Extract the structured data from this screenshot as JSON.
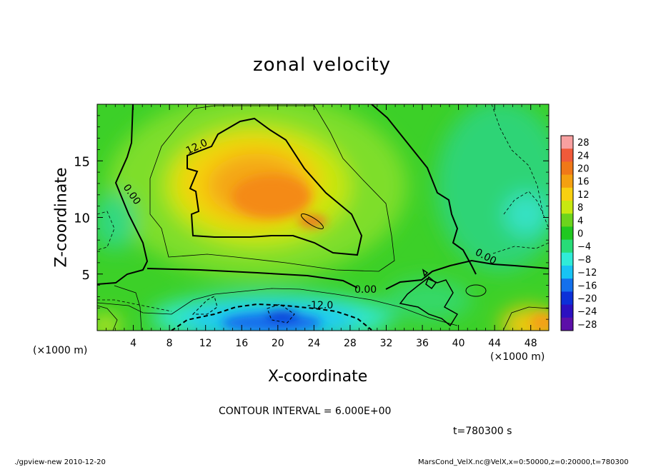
{
  "chart_data": {
    "type": "heatmap",
    "title": "zonal velocity",
    "xlabel": "X-coordinate",
    "ylabel": "Z-coordinate",
    "x_unit_label": "(×1000 m)",
    "y_unit_label": "(×1000 m)",
    "x_ticks": [
      "4",
      "8",
      "12",
      "16",
      "20",
      "24",
      "28",
      "32",
      "36",
      "40",
      "44",
      "48"
    ],
    "x_tick_values": [
      4,
      8,
      12,
      16,
      20,
      24,
      28,
      32,
      36,
      40,
      44,
      48
    ],
    "y_ticks": [
      "5",
      "10",
      "15"
    ],
    "y_tick_values": [
      5,
      10,
      15
    ],
    "xlim": [
      0,
      50
    ],
    "ylim": [
      0,
      20
    ],
    "colorbar_levels": [
      "28",
      "24",
      "20",
      "16",
      "12",
      "8",
      "4",
      "0",
      "−4",
      "−8",
      "−12",
      "−16",
      "−20",
      "−24",
      "−28"
    ],
    "colorbar_colors": [
      "#f8a0a0",
      "#f05a3a",
      "#f07818",
      "#f4a010",
      "#f8d010",
      "#c8e810",
      "#6cd41c",
      "#20c820",
      "#28dc78",
      "#30ecd8",
      "#18c4f4",
      "#1470ec",
      "#0c30d8",
      "#2c10c0",
      "#5c10a8"
    ],
    "contour_labels": [
      "12.0",
      "0.00",
      "0.00",
      "0.00",
      "-12.0"
    ],
    "contour_interval_text": "CONTOUR INTERVAL = 6.000E+00",
    "time_text": "t=780300  s"
  },
  "footer": {
    "left": "./gpview-new   2010-12-20",
    "right": "MarsCond_VelX.nc@VelX,x=0:50000,z=0:20000,t=780300"
  }
}
